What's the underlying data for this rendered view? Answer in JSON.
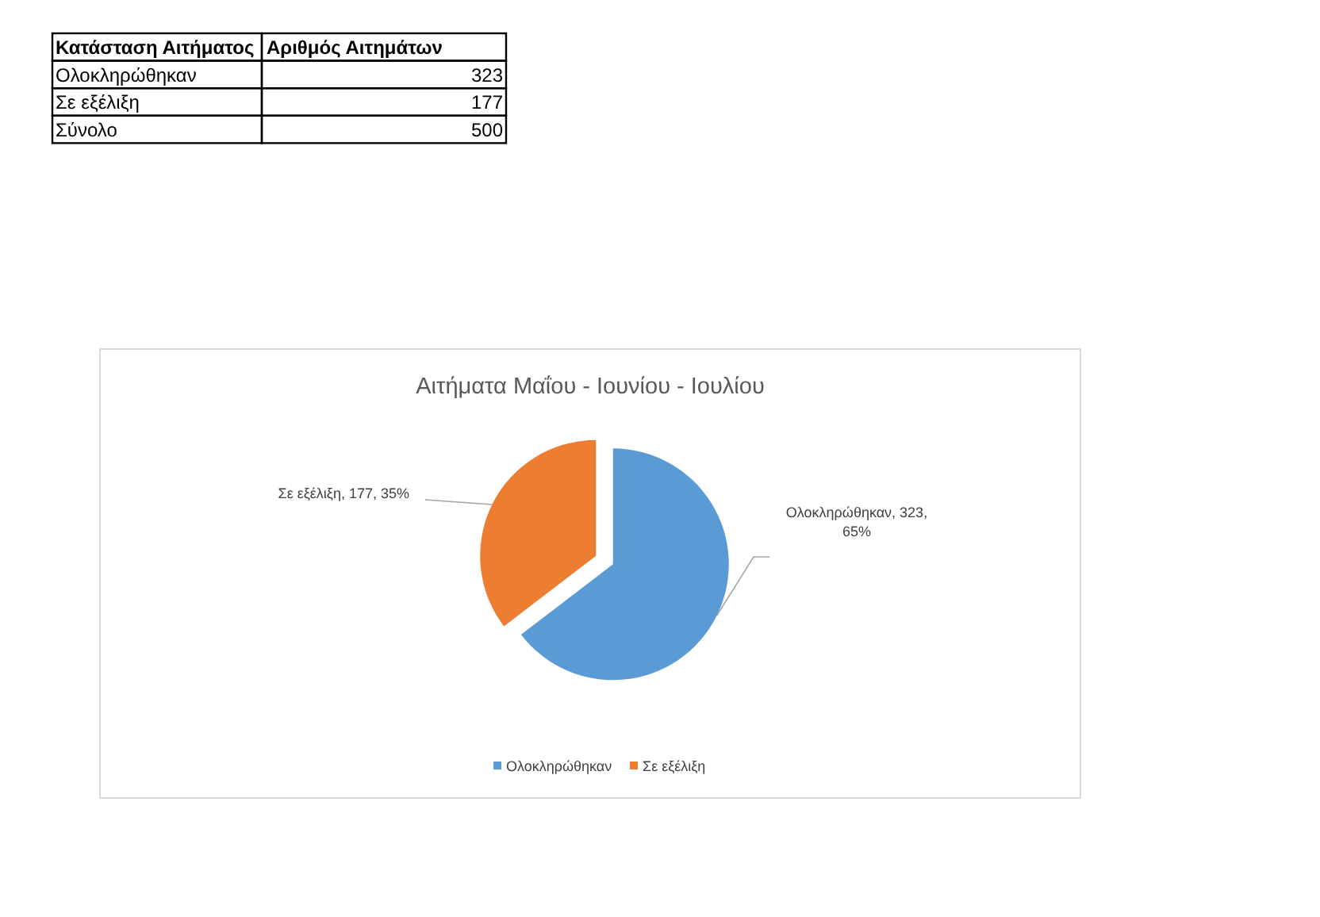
{
  "chart_data": [
    {
      "type": "other",
      "xlabel": "Κατάσταση Αιτήματος",
      "ylabel": "Αριθμός Αιτημάτων",
      "categories": [
        "Ολοκληρώθηκαν",
        "Σε εξέλιξη",
        "Σύνολο"
      ],
      "values": [
        323,
        177,
        500
      ],
      "data_labels": true
    },
    {
      "type": "pie",
      "title": "Αιτήματα Μαΐου - Ιουνίου - Ιουλίου",
      "categories": [
        "Ολοκληρώθηκαν",
        "Σε εξέλιξη"
      ],
      "values": [
        323,
        177
      ],
      "colors": [
        "#5b9bd5",
        "#ed7d31"
      ],
      "value_labels": [
        "Ολοκληρώθηκαν, 323, 65%",
        "Σε εξέλιξη, 177, 35%"
      ],
      "legend": "bottom"
    }
  ]
}
